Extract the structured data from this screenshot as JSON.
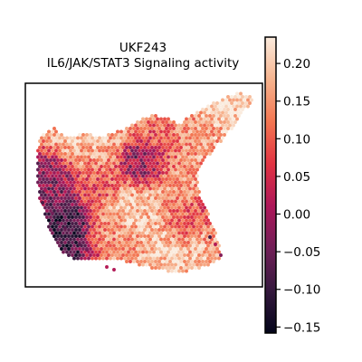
{
  "chart_data": {
    "type": "scatter",
    "plot_kind": "spatial hexagonal spot map",
    "title_lines": [
      "UKF243",
      "IL6/JAK/STAT3 Signaling activity"
    ],
    "colormap": "rocket",
    "colormap_stops": [
      "#03051a",
      "#35193e",
      "#701f57",
      "#ad1759",
      "#e13342",
      "#f37651",
      "#f6b48f",
      "#faebdd"
    ],
    "colorbar": {
      "min": -0.158,
      "max": 0.235,
      "ticks": [
        {
          "value": 0.2,
          "label": "0.20"
        },
        {
          "value": 0.15,
          "label": "0.15"
        },
        {
          "value": 0.1,
          "label": "0.10"
        },
        {
          "value": 0.05,
          "label": "0.05"
        },
        {
          "value": 0.0,
          "label": "0.00"
        },
        {
          "value": -0.05,
          "label": "−0.05"
        },
        {
          "value": -0.1,
          "label": "−0.10"
        },
        {
          "value": -0.15,
          "label": "−0.15"
        }
      ]
    },
    "axes_visible": false,
    "grid": false
  }
}
